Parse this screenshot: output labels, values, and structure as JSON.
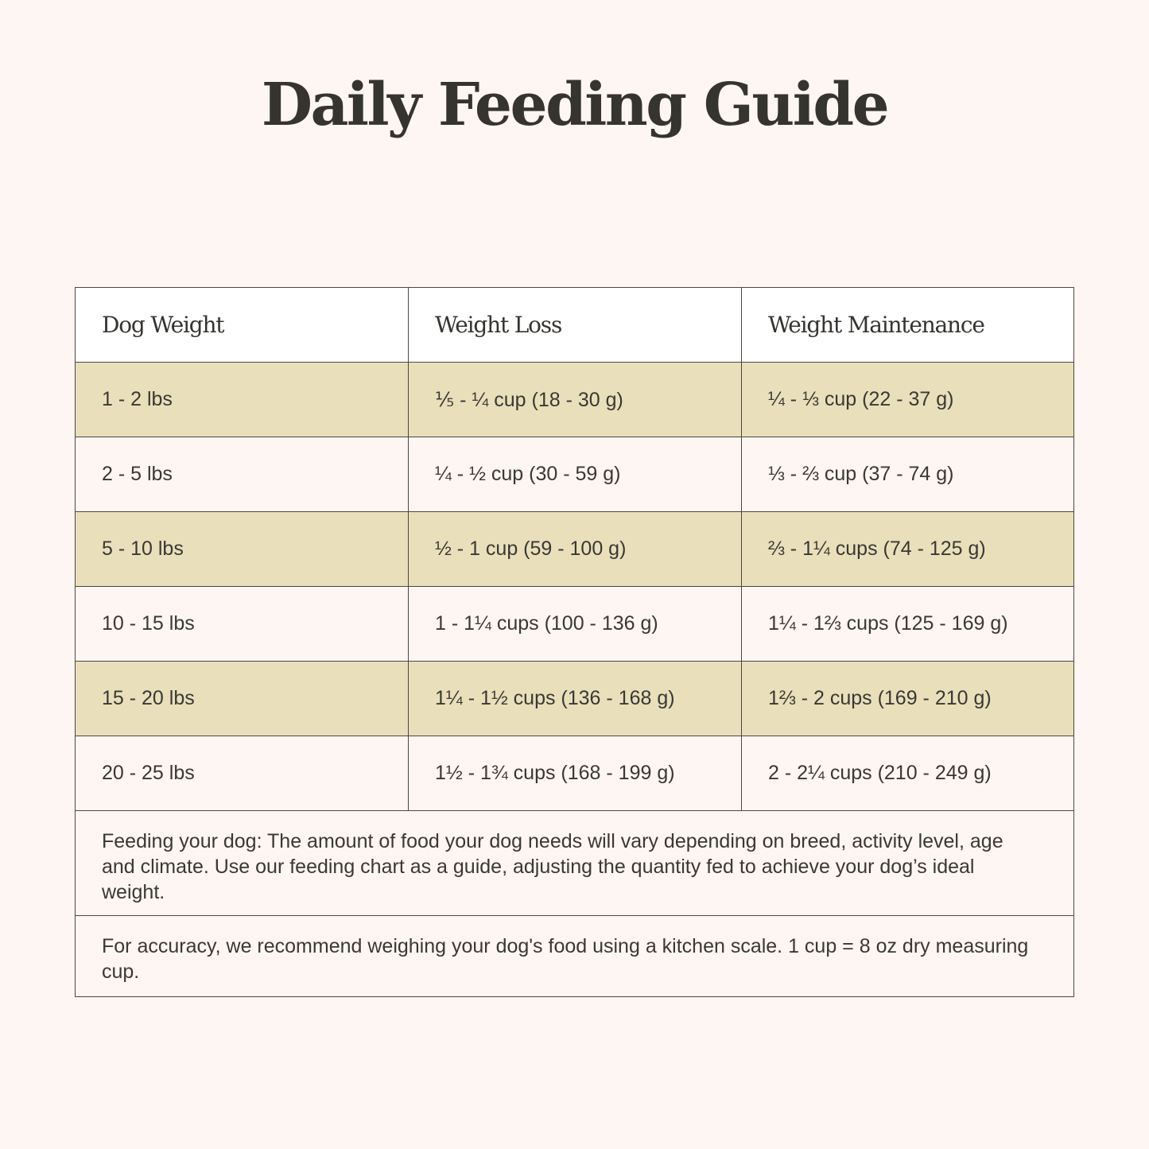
{
  "page": {
    "title": "Daily Feeding Guide",
    "colors": {
      "background": "#FDF6F2",
      "header_row": "#FFFFFF",
      "shaded_row": "#E9DFBA",
      "text": "#3A3835",
      "border": "#4A4845"
    }
  },
  "table": {
    "headers": [
      "Dog Weight",
      "Weight Loss",
      "Weight Maintenance"
    ],
    "rows": [
      [
        "1 - 2 lbs",
        "⅕ - ¼ cup (18 - 30 g)",
        "¼ - ⅓ cup (22 - 37 g)"
      ],
      [
        "2 - 5 lbs",
        "¼ - ½ cup (30 - 59 g)",
        "⅓ - ⅔ cup (37 - 74 g)"
      ],
      [
        "5 - 10 lbs",
        "½ - 1 cup (59 - 100 g)",
        "⅔ - 1¼ cups (74 - 125 g)"
      ],
      [
        "10 - 15 lbs",
        "1 - 1¼ cups (100 - 136 g)",
        "1¼ - 1⅔ cups (125 - 169 g)"
      ],
      [
        "15 - 20 lbs",
        "1¼ - 1½ cups (136 - 168 g)",
        "1⅔ - 2 cups (169 - 210 g)"
      ],
      [
        "20 - 25 lbs",
        "1½ - 1¾ cups (168 - 199 g)",
        "2 - 2¼ cups (210 - 249 g)"
      ]
    ]
  },
  "notes": [
    "Feeding your dog: The amount of food your dog needs will vary depending on breed, activity level, age and climate. Use our feeding chart as a guide, adjusting the quantity fed to achieve your dog’s ideal weight.",
    "For accuracy, we recommend weighing your dog's food using a kitchen scale. 1 cup = 8 oz dry measuring cup."
  ],
  "chart_data": {
    "type": "table",
    "title": "Daily Feeding Guide",
    "columns": [
      "Dog Weight",
      "Weight Loss",
      "Weight Maintenance"
    ],
    "rows": [
      {
        "dog_weight": "1 - 2 lbs",
        "weight_loss": "⅕ - ¼ cup (18 - 30 g)",
        "weight_maintenance": "¼ - ⅓ cup (22 - 37 g)"
      },
      {
        "dog_weight": "2 - 5 lbs",
        "weight_loss": "¼ - ½ cup (30 - 59 g)",
        "weight_maintenance": "⅓ - ⅔ cup (37 - 74 g)"
      },
      {
        "dog_weight": "5 - 10 lbs",
        "weight_loss": "½ - 1 cup (59 - 100 g)",
        "weight_maintenance": "⅔ - 1¼ cups (74 - 125 g)"
      },
      {
        "dog_weight": "10 - 15 lbs",
        "weight_loss": "1 - 1¼ cups (100 - 136 g)",
        "weight_maintenance": "1¼ - 1⅔ cups (125 - 169 g)"
      },
      {
        "dog_weight": "15 - 20 lbs",
        "weight_loss": "1¼ - 1½ cups (136 - 168 g)",
        "weight_maintenance": "1⅔ - 2 cups (169 - 210 g)"
      },
      {
        "dog_weight": "20 - 25 lbs",
        "weight_loss": "1½ - 1¾ cups (168 - 199 g)",
        "weight_maintenance": "2 - 2¼ cups (210 - 249 g)"
      }
    ]
  }
}
